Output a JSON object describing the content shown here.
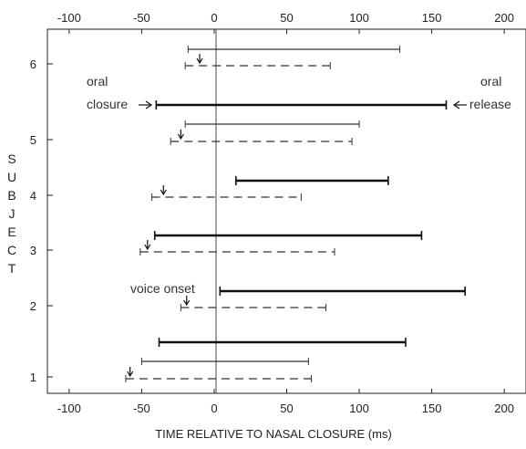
{
  "chart_data": {
    "type": "interval",
    "xlabel": "TIME RELATIVE TO NASAL CLOSURE (ms)",
    "ylabel": "SUBJECT",
    "xlim": [
      -115,
      215
    ],
    "x_ticks": [
      -100,
      -50,
      0,
      50,
      100,
      150,
      200
    ],
    "x_tick_labels": [
      "-100",
      "-50",
      "0",
      "50",
      "100",
      "150",
      "200"
    ],
    "y_ticks": [
      1,
      2,
      3,
      4,
      5,
      6
    ],
    "y_tick_labels": [
      "1",
      "2",
      "3",
      "4",
      "5",
      "6"
    ],
    "grid": false,
    "reference_line_x": 0,
    "subjects": [
      {
        "subject": 6,
        "thin": {
          "start": -18,
          "end": 128
        },
        "thick": null,
        "dashed": {
          "start": -20,
          "end": 80,
          "voice_onset": -10
        }
      },
      {
        "subject": 5,
        "thin": {
          "start": -20,
          "end": 100
        },
        "thick": {
          "start": -40,
          "end": 160
        },
        "dashed": {
          "start": -30,
          "end": 95,
          "voice_onset": -23
        }
      },
      {
        "subject": 4,
        "thin": null,
        "thick": {
          "start": 15,
          "end": 120
        },
        "dashed": {
          "start": -43,
          "end": 60,
          "voice_onset": -35
        }
      },
      {
        "subject": 3,
        "thin": null,
        "thick": {
          "start": -41,
          "end": 143
        },
        "dashed": {
          "start": -51,
          "end": 83,
          "voice_onset": -46
        }
      },
      {
        "subject": 2,
        "thin": null,
        "thick": {
          "start": 4,
          "end": 173
        },
        "dashed": {
          "start": -23,
          "end": 77,
          "voice_onset": -19
        }
      },
      {
        "subject": 1,
        "thin": {
          "start": -50,
          "end": 65
        },
        "thick": {
          "start": -38,
          "end": 132
        },
        "dashed": {
          "start": -61,
          "end": 67,
          "voice_onset": -58
        }
      }
    ],
    "annotations": [
      {
        "lines": [
          "oral",
          "closure"
        ],
        "arrow": "right"
      },
      {
        "lines": [
          "oral",
          "release"
        ],
        "arrow": "left"
      },
      {
        "lines": [
          "voice onset"
        ],
        "arrow": "none"
      }
    ]
  }
}
